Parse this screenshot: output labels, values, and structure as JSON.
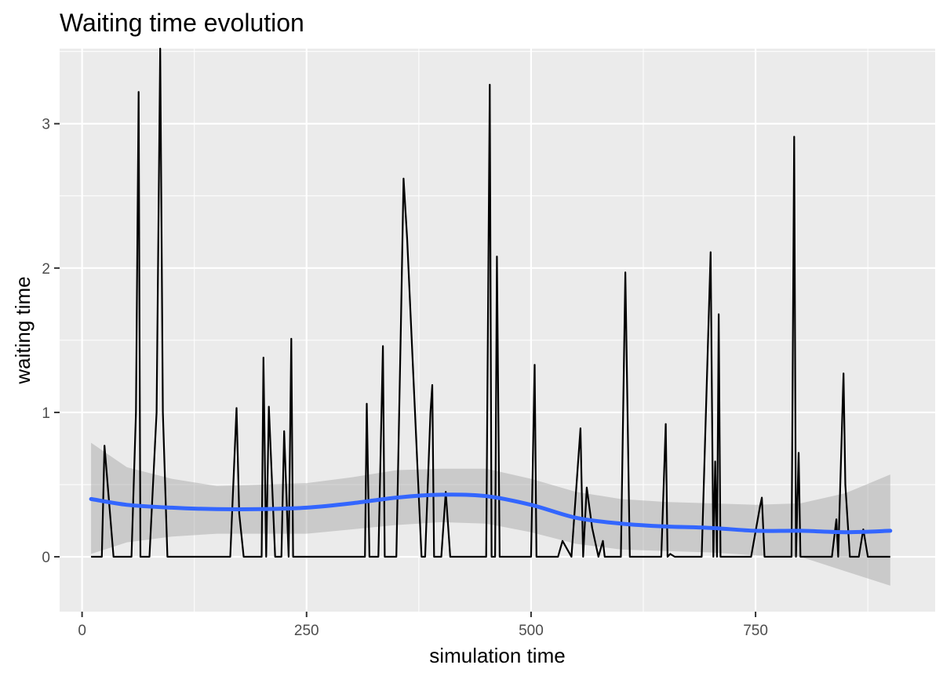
{
  "chart_data": {
    "type": "line",
    "title": "Waiting time evolution",
    "xlabel": "simulation time",
    "ylabel": "waiting time",
    "xlim": [
      -25,
      950
    ],
    "ylim": [
      -0.38,
      3.52
    ],
    "x_ticks": [
      0,
      250,
      500,
      750
    ],
    "x_tick_labels": [
      "0",
      "250",
      "500",
      "750"
    ],
    "y_ticks": [
      0,
      1,
      2,
      3
    ],
    "y_tick_labels": [
      "0",
      "1",
      "2",
      "3"
    ],
    "grid": true,
    "colors": {
      "panel_bg": "#ebebeb",
      "grid": "#ffffff",
      "series": "#000000",
      "smooth": "#3366ff",
      "ribbon": "#999999"
    },
    "series": [
      {
        "x": [
          10,
          22,
          25,
          35,
          55,
          60,
          63,
          65,
          75,
          83,
          87,
          90,
          95,
          165,
          172,
          175,
          180,
          200,
          202,
          205,
          208,
          215,
          222,
          225,
          230,
          233,
          235,
          240,
          315,
          317,
          320,
          330,
          335,
          337,
          350,
          355,
          358,
          362,
          378,
          382,
          388,
          390,
          392,
          400,
          405,
          410,
          450,
          454,
          456,
          460,
          462,
          465,
          500,
          504,
          506,
          508,
          520,
          530,
          535,
          545,
          555,
          558,
          562,
          568,
          575,
          580,
          582,
          600,
          605,
          610,
          645,
          650,
          652,
          655,
          660,
          665,
          690,
          700,
          703,
          705,
          707,
          709,
          711,
          715,
          745,
          755,
          757,
          760,
          790,
          793,
          795,
          798,
          800,
          802,
          805,
          835,
          840,
          842,
          848,
          850,
          855,
          865,
          870,
          875,
          900
        ],
        "y": [
          0,
          0,
          0.77,
          0,
          0,
          1.0,
          3.22,
          0,
          0,
          1.0,
          3.52,
          1.0,
          0,
          0,
          1.03,
          0.3,
          0,
          0,
          1.38,
          0,
          1.04,
          0,
          0,
          0.87,
          0,
          1.51,
          0,
          0,
          0,
          1.06,
          0,
          0,
          1.46,
          0,
          0,
          1.6,
          2.62,
          2.2,
          0,
          0,
          1.0,
          1.19,
          0,
          0,
          0.45,
          0,
          0,
          3.27,
          0,
          0,
          2.08,
          0,
          0,
          1.33,
          0,
          0,
          0,
          0,
          0.11,
          0,
          0.89,
          0,
          0.48,
          0.2,
          0,
          0.11,
          0,
          0,
          1.97,
          0,
          0,
          0.92,
          0,
          0.02,
          0,
          0,
          0,
          2.11,
          0,
          0.66,
          0,
          1.68,
          0,
          0,
          0,
          0.35,
          0.41,
          0,
          0,
          2.91,
          0,
          0.72,
          0,
          0,
          0,
          0,
          0.26,
          0,
          1.27,
          0.5,
          0,
          0,
          0.19,
          0,
          0
        ]
      },
      {
        "x": [
          10,
          50,
          100,
          150,
          200,
          250,
          300,
          350,
          400,
          450,
          500,
          550,
          600,
          650,
          700,
          750,
          800,
          850,
          900
        ],
        "y": [
          0.4,
          0.36,
          0.34,
          0.33,
          0.33,
          0.34,
          0.37,
          0.41,
          0.43,
          0.42,
          0.36,
          0.27,
          0.23,
          0.21,
          0.2,
          0.18,
          0.18,
          0.17,
          0.18
        ]
      }
    ],
    "ribbon": {
      "x": [
        10,
        50,
        100,
        150,
        200,
        250,
        300,
        350,
        400,
        450,
        500,
        550,
        600,
        650,
        700,
        750,
        800,
        850,
        900
      ],
      "upper": [
        0.79,
        0.62,
        0.54,
        0.49,
        0.5,
        0.51,
        0.55,
        0.6,
        0.61,
        0.61,
        0.54,
        0.45,
        0.4,
        0.38,
        0.37,
        0.36,
        0.37,
        0.44,
        0.57
      ],
      "lower": [
        0.02,
        0.1,
        0.14,
        0.16,
        0.16,
        0.16,
        0.19,
        0.22,
        0.24,
        0.23,
        0.17,
        0.09,
        0.05,
        0.04,
        0.03,
        0.01,
        0.0,
        -0.1,
        -0.2
      ]
    }
  }
}
